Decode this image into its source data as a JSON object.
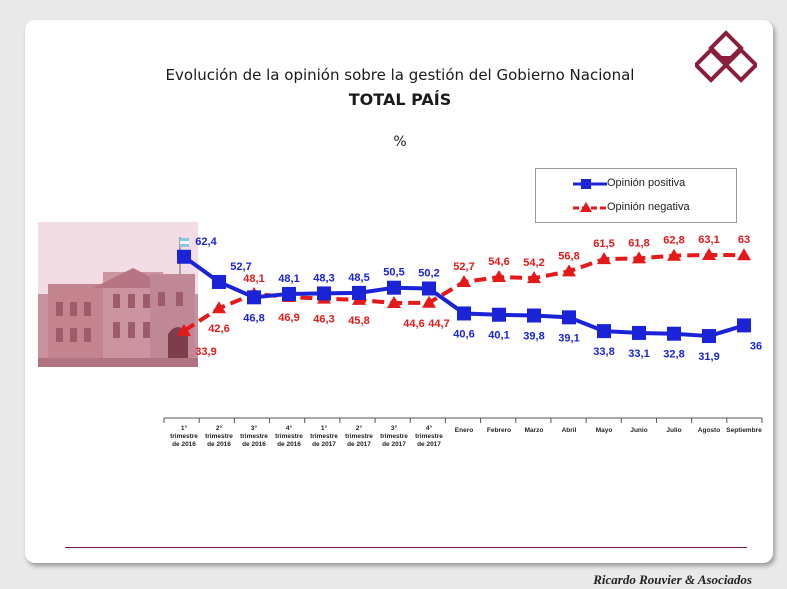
{
  "slide": {
    "title": "Evolución de la opinión sobre la gestión del Gobierno Nacional",
    "subtitle": "TOTAL PAÍS",
    "unit": "%",
    "credit": "Ricardo Rouvier & Asociados"
  },
  "colors": {
    "positive": "#1a24d6",
    "negative": "#e41919",
    "accent": "#7a1f35"
  },
  "legend": {
    "positive": "Opinión positiva",
    "negative": "Opinión negativa"
  },
  "chart_data": {
    "type": "line",
    "title": "Evolución de la opinión sobre la gestión del Gobierno Nacional",
    "subtitle": "TOTAL PAÍS",
    "ylabel": "%",
    "ylim": [
      20,
      75
    ],
    "grid": false,
    "legend_position": "top-right",
    "categories": [
      [
        "1°",
        "trimestre",
        "de 2016"
      ],
      [
        "2°",
        "trimestre",
        "de 2016"
      ],
      [
        "3°",
        "trimestre",
        "de 2016"
      ],
      [
        "4°",
        "trimestre",
        "de 2016"
      ],
      [
        "1°",
        "trimestre",
        "de 2017"
      ],
      [
        "2°",
        "trimestre",
        "de 2017"
      ],
      [
        "3°",
        "trimestre",
        "de 2017"
      ],
      [
        "4°",
        "trimestre",
        "de 2017"
      ],
      [
        "Enero"
      ],
      [
        "Febrero"
      ],
      [
        "Marzo"
      ],
      [
        "Abril"
      ],
      [
        "Mayo"
      ],
      [
        "Junio"
      ],
      [
        "Julio"
      ],
      [
        "Agosto"
      ],
      [
        "Septiembre"
      ]
    ],
    "series": [
      {
        "name": "Opinión positiva",
        "values": [
          62.4,
          52.7,
          46.8,
          48.1,
          48.3,
          48.5,
          50.5,
          50.2,
          40.6,
          40.1,
          39.8,
          39.1,
          33.8,
          33.1,
          32.8,
          31.9,
          36
        ],
        "labels": [
          "62,4",
          "52,7",
          "46,8",
          "48,1",
          "48,3",
          "48,5",
          "50,5",
          "50,2",
          "40,6",
          "40,1",
          "39,8",
          "39,1",
          "33,8",
          "33,1",
          "32,8",
          "31,9",
          "36"
        ]
      },
      {
        "name": "Opinión negativa",
        "values": [
          33.9,
          42.6,
          48.1,
          46.9,
          46.3,
          45.8,
          44.6,
          44.7,
          52.7,
          54.6,
          54.2,
          56.8,
          61.5,
          61.8,
          62.8,
          63.1,
          63
        ],
        "labels": [
          "33,9",
          "42,6",
          "48,1",
          "46,9",
          "46,3",
          "45,8",
          "44,6",
          "44,7",
          "52,7",
          "54,6",
          "54,2",
          "56,8",
          "61,5",
          "61,8",
          "62,8",
          "63,1",
          "63"
        ]
      }
    ]
  }
}
